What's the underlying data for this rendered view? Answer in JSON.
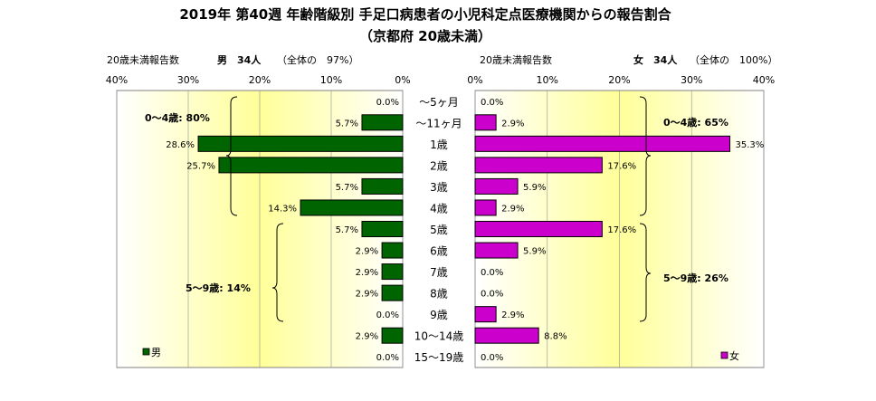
{
  "title": {
    "line1": "2019年 第40週 年齢階級別 手足口病患者の小児科定点医療機関からの報告割合",
    "line2": "（京都府 20歳未満）"
  },
  "colors": {
    "male_bar": "#006400",
    "female_bar": "#CC00CC",
    "bar_border": "#000000",
    "plot_gradient_edge": "#FFFFFF",
    "plot_gradient_center": "#FFFF99"
  },
  "chart_data": {
    "type": "bar",
    "orientation": "horizontal-pyramid",
    "categories": [
      "～5ヶ月",
      "～11ヶ月",
      "1歳",
      "2歳",
      "3歳",
      "4歳",
      "5歳",
      "6歳",
      "7歳",
      "8歳",
      "9歳",
      "10～14歳",
      "15～19歳"
    ],
    "series": [
      {
        "name": "男",
        "values": [
          0.0,
          5.7,
          28.6,
          25.7,
          5.7,
          14.3,
          5.7,
          2.9,
          2.9,
          2.9,
          0.0,
          2.9,
          0.0
        ],
        "labels": [
          "0.0%",
          "5.7%",
          "28.6%",
          "25.7%",
          "5.7%",
          "14.3%",
          "5.7%",
          "2.9%",
          "2.9%",
          "2.9%",
          "0.0%",
          "2.9%",
          "0.0%"
        ]
      },
      {
        "name": "女",
        "values": [
          0.0,
          2.9,
          35.3,
          17.6,
          5.9,
          2.9,
          17.6,
          5.9,
          0.0,
          0.0,
          2.9,
          8.8,
          0.0
        ],
        "labels": [
          "0.0%",
          "2.9%",
          "35.3%",
          "17.6%",
          "5.9%",
          "2.9%",
          "17.6%",
          "5.9%",
          "0.0%",
          "0.0%",
          "2.9%",
          "8.8%",
          "0.0%"
        ]
      }
    ],
    "xlim": [
      0,
      40
    ],
    "unit": "%",
    "ticks_male": [
      "40%",
      "30%",
      "20%",
      "10%",
      "0%"
    ],
    "ticks_female": [
      "0%",
      "10%",
      "20%",
      "30%",
      "40%"
    ],
    "male_header": {
      "label": "20歳未満報告数",
      "count": "男　34人",
      "share": "（全体の　97%）"
    },
    "female_header": {
      "label": "20歳未満報告数",
      "count": "女　34人",
      "share": "（全体の　100%）"
    },
    "annotations": {
      "male_0_4": "0～4歳: 80%",
      "male_5_9": "5～9歳: 14%",
      "female_0_4": "0～4歳: 65%",
      "female_5_9": "5～9歳: 26%"
    },
    "legend": {
      "male": "男",
      "female": "女",
      "placement": "bottom-left / bottom-right"
    },
    "grid": "vertical"
  }
}
